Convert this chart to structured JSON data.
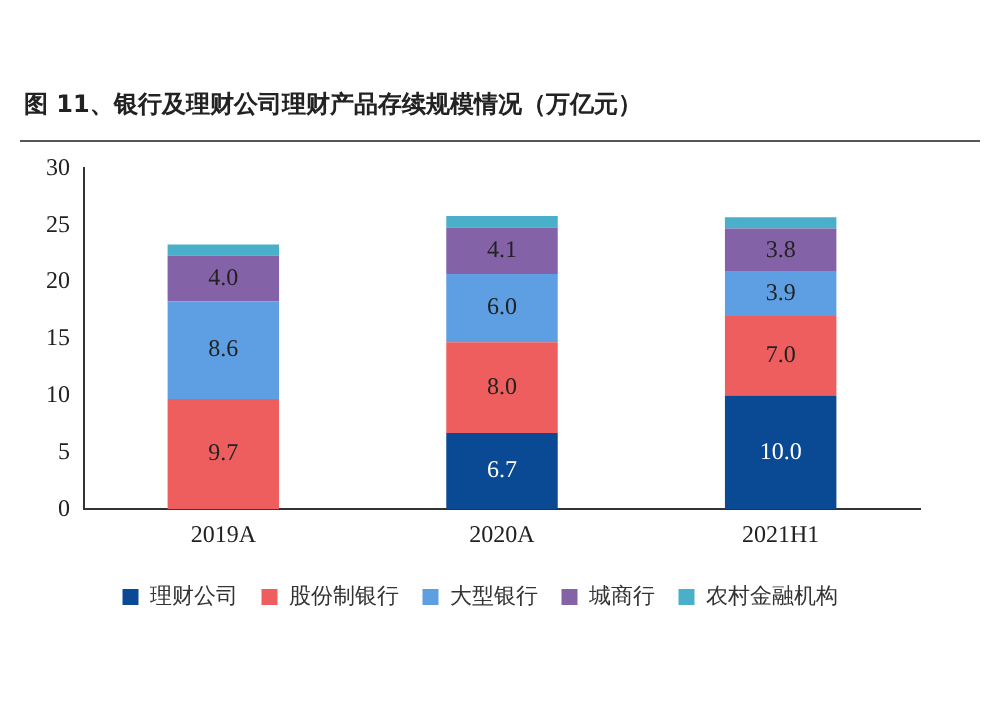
{
  "chart_data": {
    "type": "bar",
    "title": "图 11、银行及理财公司理财产品存续规模情况（万亿元）",
    "categories": [
      "2019A",
      "2020A",
      "2021H1"
    ],
    "stacked": true,
    "series": [
      {
        "name": "理财公司",
        "color": "#0a4a94",
        "values": [
          0,
          6.7,
          10.0
        ],
        "value_labels": [
          null,
          "6.7",
          "10.0"
        ]
      },
      {
        "name": "股份制银行",
        "color": "#ee5e5e",
        "values": [
          9.7,
          8.0,
          7.0
        ],
        "value_labels": [
          "9.7",
          "8.0",
          "7.0"
        ]
      },
      {
        "name": "大型银行",
        "color": "#5d9fe2",
        "values": [
          8.6,
          6.0,
          3.9
        ],
        "value_labels": [
          "8.6",
          "6.0",
          "3.9"
        ]
      },
      {
        "name": "城商行",
        "color": "#8462a8",
        "values": [
          4.0,
          4.1,
          3.8
        ],
        "value_labels": [
          "4.0",
          "4.1",
          "3.8"
        ]
      },
      {
        "name": "农村金融机构",
        "color": "#4aafc8",
        "values": [
          1.0,
          1.0,
          1.0
        ],
        "value_labels": [
          null,
          null,
          null
        ]
      }
    ],
    "ylim": [
      0,
      30
    ],
    "yticks": [
      0,
      5,
      10,
      15,
      20,
      25,
      30
    ],
    "grid": false,
    "legend": "bottom"
  }
}
